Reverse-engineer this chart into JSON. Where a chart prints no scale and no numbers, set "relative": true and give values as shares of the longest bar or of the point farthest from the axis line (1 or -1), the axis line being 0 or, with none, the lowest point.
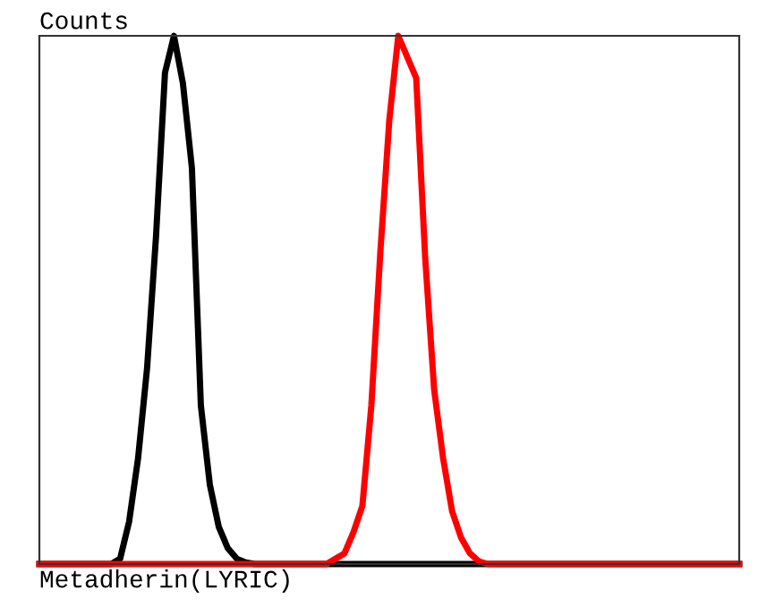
{
  "chart_data": {
    "type": "line",
    "relative": true,
    "ylabel": "Counts",
    "xlabel": "Metadherin(LYRIC)",
    "categories": [
      null,
      null,
      null,
      null,
      null,
      null,
      null,
      null,
      null,
      null,
      null,
      null,
      null,
      null,
      null,
      null,
      null,
      null,
      null,
      null,
      null,
      null,
      null,
      null,
      null,
      null,
      null,
      null,
      null,
      null,
      null,
      null,
      null,
      null,
      null,
      null,
      null,
      null,
      null,
      null,
      null,
      null,
      null,
      null,
      null,
      null,
      null,
      null,
      null,
      null,
      null,
      null,
      null,
      null,
      null,
      null,
      null,
      null,
      null,
      null,
      null,
      null,
      null,
      null,
      null,
      null,
      null,
      null,
      null,
      null,
      null,
      null,
      null,
      null,
      null,
      null,
      null,
      null,
      null
    ],
    "series": [
      {
        "color": "#000000",
        "values": [
          0,
          0,
          0,
          0,
          0,
          0,
          0,
          0,
          0,
          0.01,
          0.08,
          0.2,
          0.37,
          0.62,
          0.93,
          1,
          0.91,
          0.75,
          0.3,
          0.15,
          0.07,
          0.03,
          0.01,
          0.003,
          0,
          0,
          0,
          0,
          0,
          0,
          0,
          0,
          0,
          0,
          0,
          0,
          0,
          0,
          0,
          0,
          0,
          0,
          0,
          0,
          0,
          0,
          0,
          0,
          0,
          0,
          0,
          0,
          0,
          0,
          0,
          0,
          0,
          0,
          0,
          0,
          0,
          0,
          0,
          0,
          0,
          0,
          0,
          0,
          0,
          0,
          0,
          0,
          0,
          0,
          0,
          0,
          0,
          0,
          0
        ]
      },
      {
        "color": "#ff0000",
        "values": [
          0,
          0,
          0,
          0,
          0,
          0,
          0,
          0,
          0,
          0,
          0,
          0,
          0,
          0,
          0,
          0,
          0,
          0,
          0,
          0,
          0,
          0,
          0,
          0,
          0,
          0,
          0,
          0,
          0,
          0,
          0,
          0,
          0,
          0.01,
          0.02,
          0.06,
          0.11,
          0.3,
          0.59,
          0.84,
          1,
          0.96,
          0.92,
          0.58,
          0.33,
          0.2,
          0.1,
          0.05,
          0.02,
          0.005,
          0,
          0,
          0,
          0,
          0,
          0,
          0,
          0,
          0,
          0,
          0,
          0,
          0,
          0,
          0,
          0,
          0,
          0,
          0,
          0,
          0,
          0,
          0,
          0,
          0,
          0,
          0,
          0,
          0
        ]
      }
    ],
    "grid": false,
    "legend": false
  }
}
